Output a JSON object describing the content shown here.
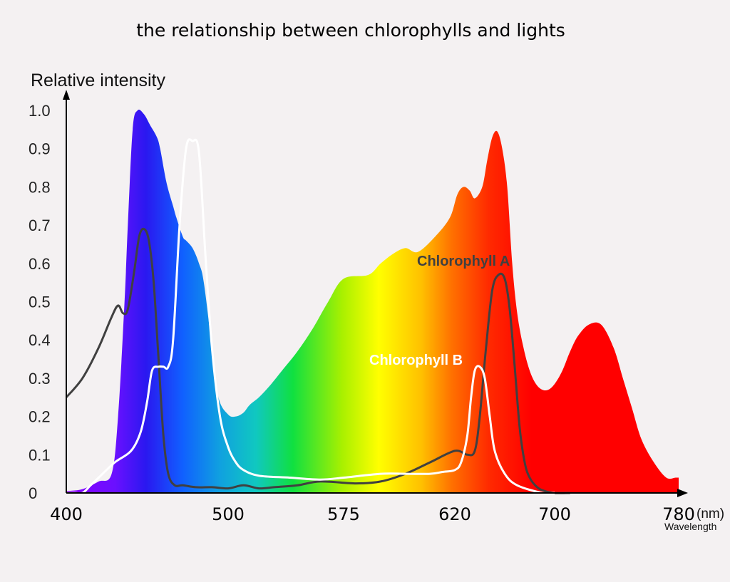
{
  "colors": {
    "background": "#f4f1f2",
    "chlorophyll_a": "#404040",
    "chlorophyll_b": "#ffffff",
    "axis": "#000000"
  },
  "chart_data": {
    "type": "area",
    "title": "the relationship between chlorophylls and lights",
    "ylabel": "Relative intensity",
    "xunit": "(nm)",
    "xlabel": "Wavelength",
    "ylim": [
      0,
      1.0
    ],
    "yticks": [
      "1.0",
      "0.9",
      "0.8",
      "0.7",
      "0.6",
      "0.5",
      "0.4",
      "0.3",
      "0.2",
      "0.1",
      "0"
    ],
    "xticks": [
      "400",
      "500",
      "575",
      "620",
      "700",
      "780"
    ],
    "grid": false,
    "series": [
      {
        "name": "",
        "fill": "visible spectrum gradient",
        "x": [
          400,
          410,
          420,
          428,
          432,
          436,
          438,
          441,
          444,
          448,
          452,
          456,
          458,
          462,
          466,
          468,
          472,
          474,
          478,
          482,
          485,
          490,
          494,
          500,
          505,
          510,
          514,
          520,
          527,
          535,
          545,
          555,
          565,
          575,
          585,
          590,
          595,
          600,
          605,
          612,
          618,
          622,
          627,
          632,
          636,
          642,
          646,
          650,
          654,
          658,
          662,
          666,
          670,
          675,
          680,
          685,
          690,
          695,
          700,
          705,
          710,
          715,
          722,
          730,
          738,
          744,
          750,
          756,
          764,
          772,
          778,
          780
        ],
        "values": [
          0.005,
          0.01,
          0.03,
          0.05,
          0.2,
          0.5,
          0.7,
          0.95,
          1.0,
          0.99,
          0.96,
          0.93,
          0.9,
          0.81,
          0.75,
          0.72,
          0.67,
          0.66,
          0.64,
          0.6,
          0.55,
          0.38,
          0.25,
          0.205,
          0.2,
          0.21,
          0.23,
          0.25,
          0.28,
          0.32,
          0.37,
          0.43,
          0.5,
          0.56,
          0.57,
          0.6,
          0.625,
          0.64,
          0.63,
          0.67,
          0.72,
          0.78,
          0.8,
          0.79,
          0.77,
          0.8,
          0.87,
          0.93,
          0.945,
          0.9,
          0.8,
          0.6,
          0.47,
          0.38,
          0.32,
          0.285,
          0.27,
          0.27,
          0.285,
          0.32,
          0.37,
          0.41,
          0.44,
          0.44,
          0.38,
          0.3,
          0.22,
          0.14,
          0.08,
          0.04,
          0.04,
          0.04
        ]
      },
      {
        "name": "Chlorophyll A",
        "x": [
          400,
          410,
          420,
          428,
          432,
          435,
          438,
          442,
          445,
          448,
          451,
          454,
          457,
          460,
          463,
          467,
          472,
          480,
          490,
          500,
          510,
          520,
          530,
          545,
          560,
          580,
          590,
          600,
          610,
          620,
          630,
          636,
          640,
          645,
          650,
          655,
          660,
          664,
          668,
          672,
          676,
          680,
          686,
          692,
          700,
          710
        ],
        "values": [
          0.25,
          0.3,
          0.38,
          0.46,
          0.49,
          0.47,
          0.48,
          0.58,
          0.67,
          0.69,
          0.66,
          0.55,
          0.35,
          0.15,
          0.05,
          0.02,
          0.02,
          0.015,
          0.015,
          0.012,
          0.02,
          0.012,
          0.015,
          0.02,
          0.03,
          0.025,
          0.03,
          0.05,
          0.08,
          0.11,
          0.1,
          0.11,
          0.2,
          0.38,
          0.53,
          0.57,
          0.56,
          0.48,
          0.33,
          0.17,
          0.08,
          0.04,
          0.015,
          0.005,
          0.0,
          0.0
        ]
      },
      {
        "name": "Chlorophyll B",
        "x": [
          400,
          405,
          410,
          415,
          420,
          430,
          440,
          446,
          450,
          453,
          457,
          460,
          463,
          466,
          470,
          474,
          478,
          482,
          486,
          490,
          495,
          500,
          505,
          510,
          520,
          540,
          560,
          575,
          590,
          600,
          610,
          615,
          620,
          625,
          630,
          633,
          636,
          640,
          644,
          648,
          652,
          660,
          670,
          690,
          700
        ],
        "values": [
          0.0,
          0.0,
          0.0,
          0.02,
          0.04,
          0.08,
          0.11,
          0.16,
          0.24,
          0.32,
          0.33,
          0.33,
          0.33,
          0.4,
          0.7,
          0.9,
          0.92,
          0.89,
          0.62,
          0.38,
          0.2,
          0.12,
          0.08,
          0.06,
          0.045,
          0.04,
          0.035,
          0.04,
          0.05,
          0.05,
          0.05,
          0.055,
          0.06,
          0.08,
          0.15,
          0.25,
          0.32,
          0.33,
          0.3,
          0.2,
          0.11,
          0.05,
          0.02,
          0.0,
          0.0
        ]
      }
    ]
  }
}
